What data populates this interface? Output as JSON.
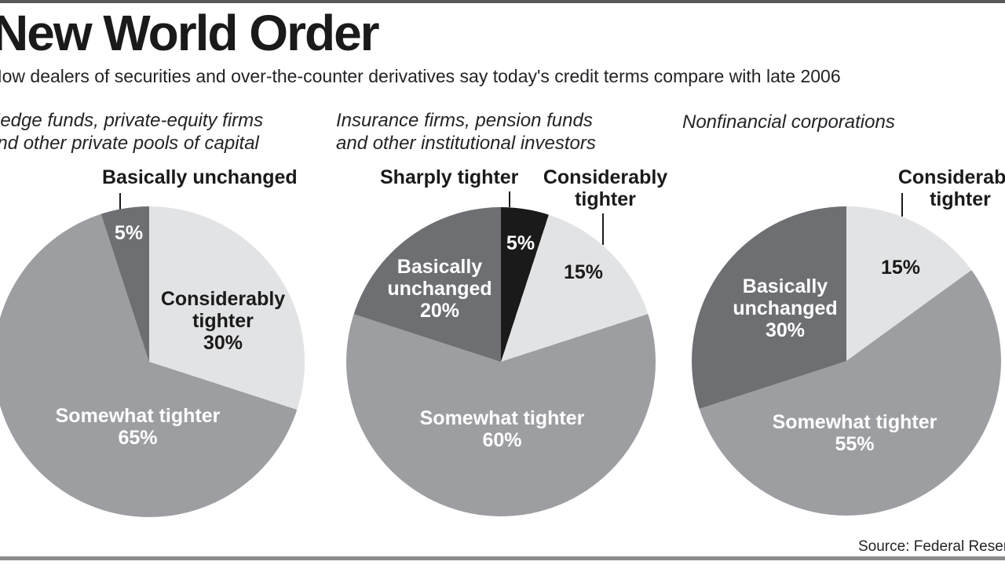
{
  "page": {
    "title": "New World Order",
    "subtitle": "How dealers of securities and over-the-counter derivatives say today's credit terms compare with late 2006",
    "source": "Source: Federal Reserve"
  },
  "colors": {
    "slice_light_gray": "#e2e3e4",
    "slice_medium_gray": "#9c9ea1",
    "slice_dark_gray": "#6d6f72",
    "slice_black": "#1a1a1a",
    "top_rule": "#58595b",
    "bottom_rule": "#8a8c8e"
  },
  "chart_data": [
    {
      "type": "pie",
      "title_lines": [
        "Hedge funds, private-equity firms",
        "and other private pools of capital"
      ],
      "start_angle_deg": 0,
      "slices": [
        {
          "label": "Considerably tighter",
          "pct_label": "30%",
          "value": 30,
          "color": "#e2e3e4"
        },
        {
          "label": "Somewhat tighter",
          "pct_label": "65%",
          "value": 65,
          "color": "#9c9ea1"
        },
        {
          "label": "Basically unchanged",
          "pct_label": "5%",
          "value": 5,
          "color": "#6d6f72"
        }
      ]
    },
    {
      "type": "pie",
      "title_lines": [
        "Insurance firms, pension funds",
        "and other institutional investors"
      ],
      "start_angle_deg": 0,
      "slices": [
        {
          "label": "Sharply tighter",
          "pct_label": "5%",
          "value": 5,
          "color": "#1a1a1a"
        },
        {
          "label": "Considerably tighter",
          "pct_label": "15%",
          "value": 15,
          "color": "#e2e3e4"
        },
        {
          "label": "Somewhat tighter",
          "pct_label": "60%",
          "value": 60,
          "color": "#9c9ea1"
        },
        {
          "label": "Basically unchanged",
          "pct_label": "20%",
          "value": 20,
          "color": "#6d6f72"
        }
      ]
    },
    {
      "type": "pie",
      "title_lines": [
        "Nonfinancial corporations"
      ],
      "start_angle_deg": 0,
      "slices": [
        {
          "label": "Considerably tighter",
          "pct_label": "15%",
          "value": 15,
          "color": "#e2e3e4"
        },
        {
          "label": "Somewhat tighter",
          "pct_label": "55%",
          "value": 55,
          "color": "#9c9ea1"
        },
        {
          "label": "Basically unchanged",
          "pct_label": "30%",
          "value": 30,
          "color": "#6d6f72"
        }
      ]
    }
  ]
}
